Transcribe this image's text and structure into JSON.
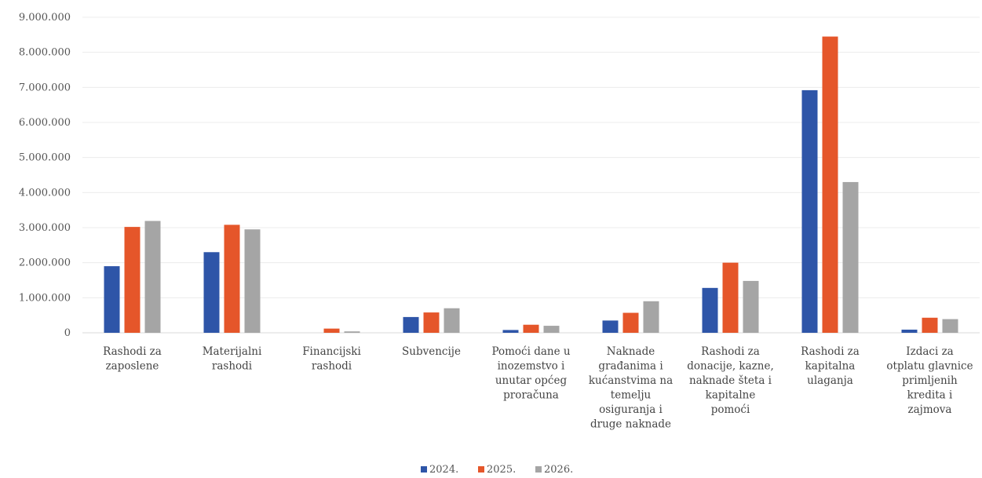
{
  "chart_data": {
    "type": "bar",
    "title": "",
    "xlabel": "",
    "ylabel": "",
    "ylim": [
      0,
      9000000
    ],
    "yticks": [
      "0",
      "1.000.000",
      "2.000.000",
      "3.000.000",
      "4.000.000",
      "5.000.000",
      "6.000.000",
      "7.000.000",
      "8.000.000",
      "9.000.000"
    ],
    "grid": true,
    "legend_position": "bottom",
    "categories": [
      [
        "Rashodi za",
        "zaposlene"
      ],
      [
        "Materijalni",
        "rashodi"
      ],
      [
        "Financijski",
        "rashodi"
      ],
      [
        "Subvencije"
      ],
      [
        "Pomoći dane u",
        "inozemstvo i",
        "unutar općeg",
        "proračuna"
      ],
      [
        "Naknade",
        "građanima i",
        "kućanstvima na",
        "temelju",
        "osiguranja i",
        "druge naknade"
      ],
      [
        "Rashodi za",
        "donacije, kazne,",
        "naknade šteta i",
        "kapitalne",
        "pomoći"
      ],
      [
        "Rashodi za",
        "kapitalna",
        "ulaganja"
      ],
      [
        "Izdaci za",
        "otplatu glavnice",
        "primljenih",
        "kredita i",
        "zajmova"
      ]
    ],
    "series": [
      {
        "name": "2024.",
        "color": "#2E55A8",
        "values": [
          1900000,
          2300000,
          0,
          450000,
          80000,
          350000,
          1280000,
          6920000,
          90000
        ]
      },
      {
        "name": "2025.",
        "color": "#E5562A",
        "values": [
          3020000,
          3080000,
          120000,
          580000,
          230000,
          570000,
          2000000,
          8450000,
          430000
        ]
      },
      {
        "name": "2026.",
        "color": "#A5A5A5",
        "values": [
          3190000,
          2950000,
          40000,
          700000,
          200000,
          900000,
          1480000,
          4300000,
          390000
        ]
      }
    ]
  }
}
